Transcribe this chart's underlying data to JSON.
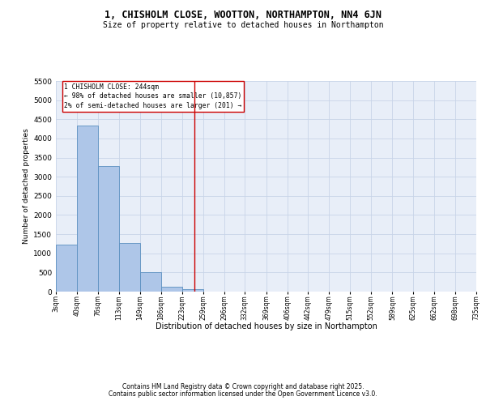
{
  "title": "1, CHISHOLM CLOSE, WOOTTON, NORTHAMPTON, NN4 6JN",
  "subtitle": "Size of property relative to detached houses in Northampton",
  "xlabel": "Distribution of detached houses by size in Northampton",
  "ylabel": "Number of detached properties",
  "bin_labels": [
    "3sqm",
    "40sqm",
    "76sqm",
    "113sqm",
    "149sqm",
    "186sqm",
    "223sqm",
    "259sqm",
    "296sqm",
    "332sqm",
    "369sqm",
    "406sqm",
    "442sqm",
    "479sqm",
    "515sqm",
    "552sqm",
    "589sqm",
    "625sqm",
    "662sqm",
    "698sqm",
    "735sqm"
  ],
  "bin_edges": [
    3,
    40,
    76,
    113,
    149,
    186,
    223,
    259,
    296,
    332,
    369,
    406,
    442,
    479,
    515,
    552,
    589,
    625,
    662,
    698,
    735
  ],
  "bar_heights": [
    1230,
    4330,
    3280,
    1270,
    500,
    120,
    55,
    0,
    0,
    0,
    0,
    0,
    0,
    0,
    0,
    0,
    0,
    0,
    0,
    0
  ],
  "bar_color": "#aec6e8",
  "bar_edge_color": "#5a8fc0",
  "grid_color": "#c8d4e8",
  "bg_color": "#e8eef8",
  "vline_x": 244,
  "vline_color": "#cc0000",
  "annotation_title": "1 CHISHOLM CLOSE: 244sqm",
  "annotation_line1": "← 98% of detached houses are smaller (10,857)",
  "annotation_line2": "2% of semi-detached houses are larger (201) →",
  "annotation_box_color": "#ffffff",
  "annotation_border_color": "#cc0000",
  "ylim": [
    0,
    5500
  ],
  "yticks": [
    0,
    500,
    1000,
    1500,
    2000,
    2500,
    3000,
    3500,
    4000,
    4500,
    5000,
    5500
  ],
  "footer_line1": "Contains HM Land Registry data © Crown copyright and database right 2025.",
  "footer_line2": "Contains public sector information licensed under the Open Government Licence v3.0."
}
